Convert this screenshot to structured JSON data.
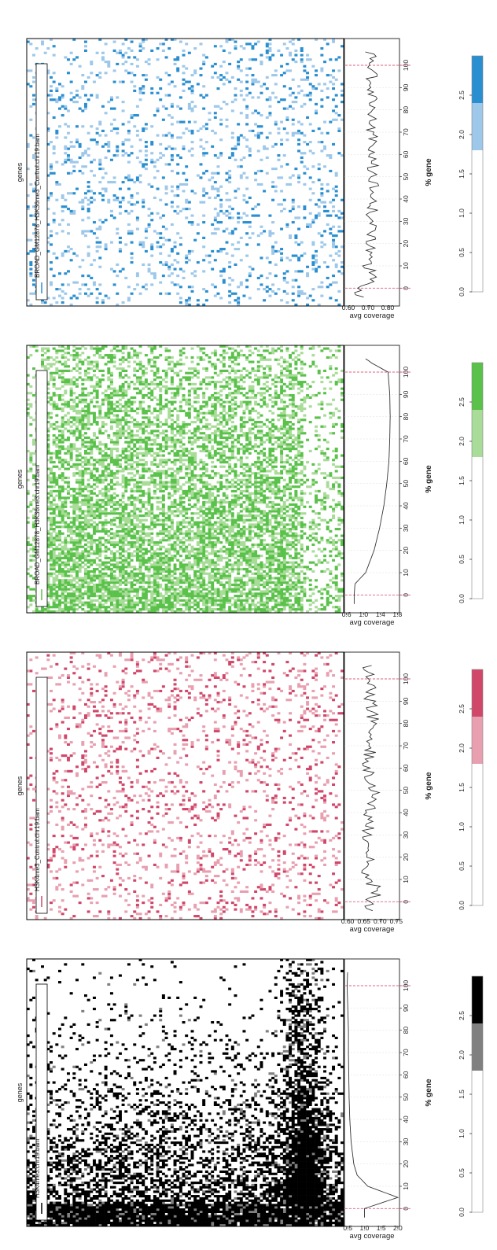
{
  "figure": {
    "orientation": "rotated-180",
    "background": "#ffffff",
    "boundary_color": "#e06080"
  },
  "chart_data": [
    {
      "type": "heatmap",
      "name": "H3K4me3.chr19.bam",
      "legend_label": "H3K4me3.chr19.bam",
      "color": "#000000",
      "mid_color": "#808080",
      "y_label": "genes",
      "heat_pattern": "tss-peak",
      "profile": {
        "x": [
          0,
          5,
          10,
          15,
          20,
          30,
          40,
          50,
          60,
          70,
          80,
          90,
          100,
          108
        ],
        "y": [
          1.0,
          2.0,
          1.1,
          0.78,
          0.68,
          0.6,
          0.56,
          0.54,
          0.53,
          0.52,
          0.52,
          0.5,
          0.48,
          0.5
        ],
        "x_ticks": [
          "0",
          "10",
          "20",
          "30",
          "40",
          "50",
          "60",
          "70",
          "80",
          "90",
          "100"
        ],
        "x_label": "% gene",
        "y_label": "avg coverage",
        "y_ticks": [
          "0.5",
          "1.0",
          "1.5",
          "2.0"
        ],
        "y_range": [
          0.4,
          2.05
        ],
        "jitter": 0.0
      },
      "colorbar": {
        "ticks": [
          "0.0",
          "0.5",
          "1.0",
          "1.5",
          "2.0",
          "2.5"
        ],
        "range": [
          0,
          3
        ],
        "bins": [
          {
            "from": 0,
            "to": 1.8,
            "color": "#ffffff"
          },
          {
            "from": 1.8,
            "to": 2.4,
            "color": "#808080"
          },
          {
            "from": 2.4,
            "to": 3.0,
            "color": "#000000"
          }
        ]
      }
    },
    {
      "type": "heatmap",
      "name": "H3K4me3_Control.chr19.bam",
      "legend_label": "H3K4me3_Control.chr19.bam",
      "color": "#d0476a",
      "mid_color": "#e8a0b0",
      "y_label": "genes",
      "heat_pattern": "sparse",
      "profile": {
        "x": [
          0,
          5,
          10,
          20,
          30,
          40,
          50,
          60,
          70,
          80,
          90,
          100,
          108
        ],
        "y": [
          0.66,
          0.7,
          0.66,
          0.67,
          0.66,
          0.67,
          0.68,
          0.66,
          0.67,
          0.68,
          0.67,
          0.67,
          0.66
        ],
        "x_ticks": [
          "0",
          "10",
          "20",
          "30",
          "40",
          "50",
          "60",
          "70",
          "80",
          "90",
          "100"
        ],
        "x_label": "% gene",
        "y_label": "avg coverage",
        "y_ticks": [
          "0.60",
          "0.65",
          "0.70",
          "0.75"
        ],
        "y_range": [
          0.59,
          0.76
        ],
        "jitter": 0.02
      },
      "colorbar": {
        "ticks": [
          "0.0",
          "0.5",
          "1.0",
          "1.5",
          "2.0",
          "2.5"
        ],
        "range": [
          0,
          3
        ],
        "bins": [
          {
            "from": 0,
            "to": 1.8,
            "color": "#ffffff"
          },
          {
            "from": 1.8,
            "to": 2.4,
            "color": "#e8a0b0"
          },
          {
            "from": 2.4,
            "to": 3.0,
            "color": "#d0476a"
          }
        ]
      }
    },
    {
      "type": "heatmap",
      "name": "BROAD_GM12878_H3K36me3.chr19.bam",
      "legend_label": "BROAD_GM12878_H3K36me3.chr19.bam",
      "color": "#5ac24a",
      "mid_color": "#a8dc98",
      "y_label": "genes",
      "heat_pattern": "dense",
      "profile": {
        "x": [
          0,
          5,
          10,
          20,
          30,
          40,
          50,
          60,
          70,
          80,
          90,
          100,
          104,
          108
        ],
        "y": [
          0.78,
          0.8,
          1.05,
          1.25,
          1.38,
          1.48,
          1.55,
          1.6,
          1.62,
          1.63,
          1.62,
          1.58,
          1.2,
          0.9
        ],
        "x_ticks": [
          "0",
          "10",
          "20",
          "30",
          "40",
          "50",
          "60",
          "70",
          "80",
          "90",
          "100"
        ],
        "x_label": "% gene",
        "y_label": "avg coverage",
        "y_ticks": [
          "0.6",
          "1.0",
          "1.4",
          "1.8"
        ],
        "y_range": [
          0.55,
          1.85
        ],
        "jitter": 0.0
      },
      "colorbar": {
        "ticks": [
          "0.0",
          "0.5",
          "1.0",
          "1.5",
          "2.0",
          "2.5"
        ],
        "range": [
          0,
          3
        ],
        "bins": [
          {
            "from": 0,
            "to": 1.8,
            "color": "#ffffff"
          },
          {
            "from": 1.8,
            "to": 2.4,
            "color": "#a8dc98"
          },
          {
            "from": 2.4,
            "to": 3.0,
            "color": "#5ac24a"
          }
        ]
      }
    },
    {
      "type": "heatmap",
      "name": "BROAD_GM12878_H3K36me3_Control.chr19.bam",
      "legend_label": "BROAD_GM12878_H3K36me3_Control.chr19.bam",
      "color": "#2a8fd0",
      "mid_color": "#9ec8ea",
      "y_label": "genes",
      "heat_pattern": "sparse",
      "profile": {
        "x": [
          0,
          5,
          10,
          20,
          30,
          40,
          50,
          60,
          70,
          80,
          90,
          100,
          108
        ],
        "y": [
          0.66,
          0.76,
          0.7,
          0.71,
          0.72,
          0.72,
          0.73,
          0.72,
          0.72,
          0.73,
          0.72,
          0.72,
          0.71
        ],
        "x_ticks": [
          "0",
          "10",
          "20",
          "30",
          "40",
          "50",
          "60",
          "70",
          "80",
          "90",
          "100"
        ],
        "x_label": "% gene",
        "y_label": "avg coverage",
        "y_ticks": [
          "0.60",
          "0.70",
          "0.80"
        ],
        "y_range": [
          0.58,
          0.86
        ],
        "jitter": 0.03
      },
      "colorbar": {
        "ticks": [
          "0.0",
          "0.5",
          "1.0",
          "1.5",
          "2.0",
          "2.5"
        ],
        "range": [
          0,
          3
        ],
        "bins": [
          {
            "from": 0,
            "to": 1.8,
            "color": "#ffffff"
          },
          {
            "from": 1.8,
            "to": 2.4,
            "color": "#9ec8ea"
          },
          {
            "from": 2.4,
            "to": 3.0,
            "color": "#2a8fd0"
          }
        ]
      }
    }
  ]
}
